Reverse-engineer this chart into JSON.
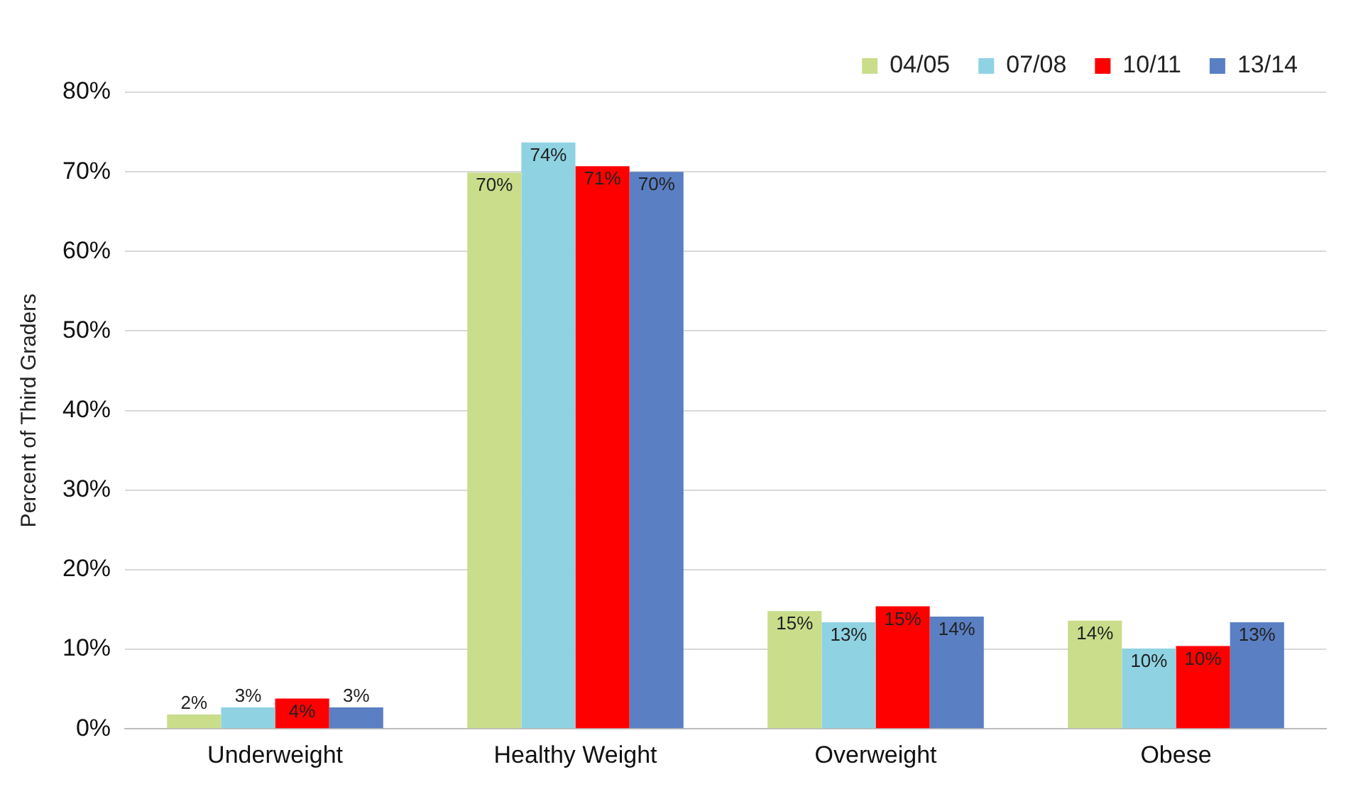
{
  "chart_data": {
    "type": "bar",
    "ylabel": "Percent of Third Graders",
    "categories": [
      "Underweight",
      "Healthy Weight",
      "Overweight",
      "Obese"
    ],
    "series": [
      {
        "name": "04/05",
        "color": "#c9dd8b",
        "values": [
          1.8,
          69.9,
          14.8,
          13.6
        ],
        "value_labels": [
          "2%",
          "70%",
          "15%",
          "14%"
        ]
      },
      {
        "name": "07/08",
        "color": "#8fd3e3",
        "values": [
          2.7,
          73.7,
          13.4,
          10.1
        ],
        "value_labels": [
          "3%",
          "74%",
          "13%",
          "10%"
        ]
      },
      {
        "name": "10/11",
        "color": "#ff0000",
        "values": [
          3.8,
          70.7,
          15.4,
          10.4
        ],
        "value_labels": [
          "4%",
          "71%",
          "15%",
          "10%"
        ]
      },
      {
        "name": "13/14",
        "color": "#5a7fc3",
        "values": [
          2.7,
          70.0,
          14.1,
          13.4
        ],
        "value_labels": [
          "3%",
          "70%",
          "14%",
          "13%"
        ]
      }
    ],
    "ylim": [
      0,
      80
    ],
    "yticks": [
      {
        "value": 0,
        "label": "0%"
      },
      {
        "value": 10,
        "label": "10%"
      },
      {
        "value": 20,
        "label": "20%"
      },
      {
        "value": 30,
        "label": "30%"
      },
      {
        "value": 40,
        "label": "40%"
      },
      {
        "value": 50,
        "label": "50%"
      },
      {
        "value": 60,
        "label": "60%"
      },
      {
        "value": 70,
        "label": "70%"
      },
      {
        "value": 80,
        "label": "80%"
      }
    ],
    "grid": "y",
    "legend": "top right"
  }
}
